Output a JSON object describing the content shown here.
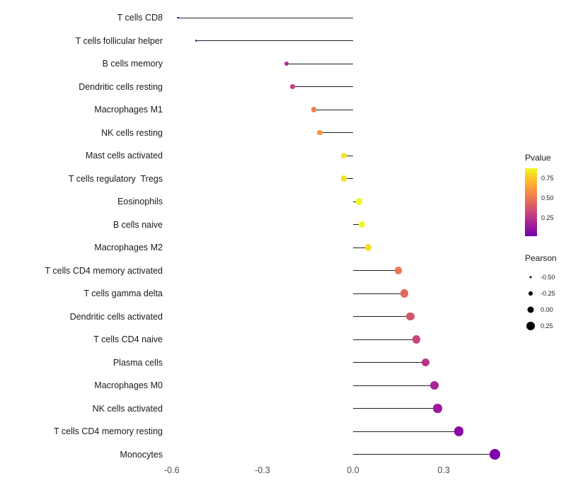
{
  "chart_data": {
    "type": "scatter",
    "variant": "lollipop",
    "xlabel": "",
    "ylabel": "",
    "x_ticks": [
      -0.6,
      -0.3,
      0,
      0.3
    ],
    "xlim": [
      -0.65,
      0.55
    ],
    "grid": "off",
    "legend_position": "right",
    "points": [
      {
        "label": "T cells CD8",
        "pearson": -0.58,
        "pvalue_approx": 0.02,
        "color": "#5601A4"
      },
      {
        "label": "T cells follicular helper",
        "pearson": -0.52,
        "pvalue_approx": 0.07,
        "color": "#7100A8"
      },
      {
        "label": "B cells memory",
        "pearson": -0.22,
        "pvalue_approx": 0.3,
        "color": "#B12A90"
      },
      {
        "label": "Dendritic cells resting",
        "pearson": -0.2,
        "pvalue_approx": 0.38,
        "color": "#C5407E"
      },
      {
        "label": "Macrophages M1",
        "pearson": -0.13,
        "pvalue_approx": 0.6,
        "color": "#F0804E"
      },
      {
        "label": "NK cells resting",
        "pearson": -0.11,
        "pvalue_approx": 0.65,
        "color": "#F79342"
      },
      {
        "label": "Mast cells activated",
        "pearson": -0.03,
        "pvalue_approx": 0.86,
        "color": "#F2E326"
      },
      {
        "label": "T cells regulatory  Tregs",
        "pearson": -0.03,
        "pvalue_approx": 0.84,
        "color": "#F4E02A"
      },
      {
        "label": "Eosinophils",
        "pearson": 0.02,
        "pvalue_approx": 0.94,
        "color": "#F0F921"
      },
      {
        "label": "B cells naive",
        "pearson": 0.03,
        "pvalue_approx": 0.92,
        "color": "#F1F722"
      },
      {
        "label": "Macrophages M2",
        "pearson": 0.05,
        "pvalue_approx": 0.8,
        "color": "#F8DF25"
      },
      {
        "label": "T cells CD4 memory activated",
        "pearson": 0.15,
        "pvalue_approx": 0.56,
        "color": "#EC7754"
      },
      {
        "label": "T cells gamma delta",
        "pearson": 0.17,
        "pvalue_approx": 0.5,
        "color": "#E26561"
      },
      {
        "label": "Dendritic cells activated",
        "pearson": 0.19,
        "pvalue_approx": 0.45,
        "color": "#D5546E"
      },
      {
        "label": "T cells CD4 naive",
        "pearson": 0.21,
        "pvalue_approx": 0.4,
        "color": "#CA457C"
      },
      {
        "label": "Plasma cells",
        "pearson": 0.24,
        "pvalue_approx": 0.34,
        "color": "#BB3488"
      },
      {
        "label": "Macrophages M0",
        "pearson": 0.27,
        "pvalue_approx": 0.27,
        "color": "#AB2394"
      },
      {
        "label": "NK cells activated",
        "pearson": 0.28,
        "pvalue_approx": 0.23,
        "color": "#A1189C"
      },
      {
        "label": "T cells CD4 memory resting",
        "pearson": 0.35,
        "pvalue_approx": 0.13,
        "color": "#8B0AA5"
      },
      {
        "label": "Monocytes",
        "pearson": 0.47,
        "pvalue_approx": 0.07,
        "color": "#7D03A8"
      }
    ],
    "legend": {
      "color": {
        "title": "Pvalue",
        "ticks": [
          "0.75",
          "0.50",
          "0.25"
        ],
        "gradient": [
          "#F0F921",
          "#FDC527",
          "#FB9F3A",
          "#ED7953",
          "#D8576B",
          "#BD3786",
          "#9C179E",
          "#7201A8"
        ]
      },
      "size": {
        "title": "Pearson",
        "items": [
          {
            "label": "-0.50",
            "pearson": -0.5
          },
          {
            "label": "-0.25",
            "pearson": -0.25
          },
          {
            "label": "0.00",
            "pearson": 0.0
          },
          {
            "label": "0.25",
            "pearson": 0.25
          }
        ]
      }
    }
  }
}
